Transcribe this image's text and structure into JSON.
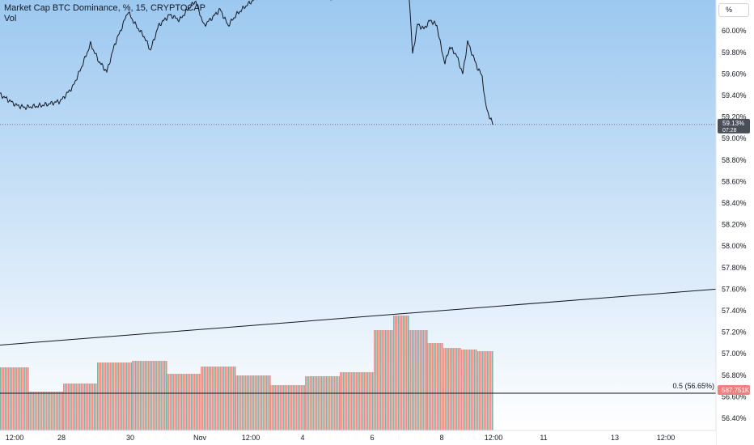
{
  "legend": {
    "symbol_line": "Market Cap BTC Dominance, %, 15, CRYPTOCAP",
    "volume_label": "Vol"
  },
  "scale_mode_button": "%",
  "colors": {
    "background_top": "#9cc8f0",
    "background_bottom": "#ffffff",
    "price_line": "#131722",
    "volume_up": "#7db6a8",
    "volume_down": "#e6908a",
    "grid": "#c8d0dc",
    "trendline": "#131722",
    "fib_line": "#131722",
    "price_tag_bg": "#4a4e59",
    "fib_tag_bg": "#f08080"
  },
  "chart_data": {
    "type": "line",
    "title": "Market Cap BTC Dominance, %, 15, CRYPTOCAP",
    "y_ticks": [
      "60.00%",
      "59.80%",
      "59.60%",
      "59.40%",
      "59.20%",
      "59.00%",
      "58.80%",
      "58.60%",
      "58.40%",
      "58.20%",
      "58.00%",
      "57.80%",
      "57.60%",
      "57.40%",
      "57.20%",
      "57.00%",
      "56.80%",
      "56.60%",
      "56.40%"
    ],
    "x_ticks": [
      "12:00",
      "28",
      "30",
      "Nov",
      "12:00",
      "4",
      "6",
      "8",
      "12:00",
      "11",
      "13",
      "12:00"
    ],
    "ylim": [
      56.3,
      60.3
    ],
    "price_series": [
      {
        "t": 0,
        "v": 59.41
      },
      {
        "t": 10,
        "v": 59.36
      },
      {
        "t": 20,
        "v": 59.31
      },
      {
        "t": 30,
        "v": 59.29
      },
      {
        "t": 45,
        "v": 59.3
      },
      {
        "t": 60,
        "v": 59.32
      },
      {
        "t": 75,
        "v": 59.35
      },
      {
        "t": 90,
        "v": 59.48
      },
      {
        "t": 100,
        "v": 59.65
      },
      {
        "t": 112,
        "v": 59.88
      },
      {
        "t": 122,
        "v": 59.72
      },
      {
        "t": 132,
        "v": 59.62
      },
      {
        "t": 142,
        "v": 59.88
      },
      {
        "t": 150,
        "v": 60.02
      },
      {
        "t": 158,
        "v": 60.18
      },
      {
        "t": 168,
        "v": 60.05
      },
      {
        "t": 178,
        "v": 59.95
      },
      {
        "t": 186,
        "v": 59.82
      },
      {
        "t": 196,
        "v": 60.05
      },
      {
        "t": 210,
        "v": 60.15
      },
      {
        "t": 222,
        "v": 60.1
      },
      {
        "t": 232,
        "v": 60.2
      },
      {
        "t": 242,
        "v": 60.28
      },
      {
        "t": 252,
        "v": 60.05
      },
      {
        "t": 262,
        "v": 60.12
      },
      {
        "t": 272,
        "v": 60.2
      },
      {
        "t": 282,
        "v": 60.05
      },
      {
        "t": 292,
        "v": 60.15
      },
      {
        "t": 302,
        "v": 60.22
      },
      {
        "t": 312,
        "v": 60.28
      },
      {
        "t": 322,
        "v": 60.35
      },
      {
        "t": 340,
        "v": 60.4
      },
      {
        "t": 352,
        "v": 60.3
      },
      {
        "t": 362,
        "v": 60.38
      },
      {
        "t": 380,
        "v": 60.42
      },
      {
        "t": 398,
        "v": 60.36
      },
      {
        "t": 408,
        "v": 60.3
      },
      {
        "t": 420,
        "v": 60.4
      },
      {
        "t": 440,
        "v": 60.45
      },
      {
        "t": 460,
        "v": 60.4
      },
      {
        "t": 480,
        "v": 60.42
      },
      {
        "t": 500,
        "v": 60.38
      },
      {
        "t": 506,
        "v": 60.3
      },
      {
        "t": 510,
        "v": 59.78
      },
      {
        "t": 516,
        "v": 60.06
      },
      {
        "t": 524,
        "v": 60.02
      },
      {
        "t": 532,
        "v": 60.1
      },
      {
        "t": 540,
        "v": 60.05
      },
      {
        "t": 546,
        "v": 59.82
      },
      {
        "t": 550,
        "v": 59.7
      },
      {
        "t": 556,
        "v": 59.85
      },
      {
        "t": 564,
        "v": 59.78
      },
      {
        "t": 572,
        "v": 59.6
      },
      {
        "t": 578,
        "v": 59.9
      },
      {
        "t": 584,
        "v": 59.78
      },
      {
        "t": 590,
        "v": 59.66
      },
      {
        "t": 596,
        "v": 59.58
      },
      {
        "t": 600,
        "v": 59.32
      },
      {
        "t": 606,
        "v": 59.18
      },
      {
        "t": 610,
        "v": 59.13
      }
    ],
    "volume_blocks": [
      {
        "t0": 0,
        "t1": 35,
        "level": 0.52
      },
      {
        "t0": 35,
        "t1": 78,
        "level": 0.22
      },
      {
        "t0": 78,
        "t1": 120,
        "level": 0.32
      },
      {
        "t0": 120,
        "t1": 163,
        "level": 0.58
      },
      {
        "t0": 163,
        "t1": 206,
        "level": 0.6
      },
      {
        "t0": 206,
        "t1": 248,
        "level": 0.44
      },
      {
        "t0": 248,
        "t1": 291,
        "level": 0.53
      },
      {
        "t0": 291,
        "t1": 334,
        "level": 0.42
      },
      {
        "t0": 334,
        "t1": 377,
        "level": 0.3
      },
      {
        "t0": 377,
        "t1": 420,
        "level": 0.41
      },
      {
        "t0": 420,
        "t1": 462,
        "level": 0.46
      },
      {
        "t0": 462,
        "t1": 486,
        "level": 0.98
      },
      {
        "t0": 486,
        "t1": 505,
        "level": 1.16
      },
      {
        "t0": 505,
        "t1": 528,
        "level": 0.98
      },
      {
        "t0": 528,
        "t1": 548,
        "level": 0.82
      },
      {
        "t0": 548,
        "t1": 570,
        "level": 0.76
      },
      {
        "t0": 570,
        "t1": 590,
        "level": 0.74
      },
      {
        "t0": 590,
        "t1": 610,
        "level": 0.72
      }
    ],
    "trendline": {
      "from": {
        "t": 0,
        "v": 57.08
      },
      "to": {
        "t": 884,
        "v": 57.6
      }
    },
    "fib_level": {
      "label": "0.5 (56.65%)",
      "value": 56.65
    },
    "last_price_tag": "59.13%",
    "last_price_countdown": "07:28",
    "fib_price_tag": "587.751K"
  }
}
